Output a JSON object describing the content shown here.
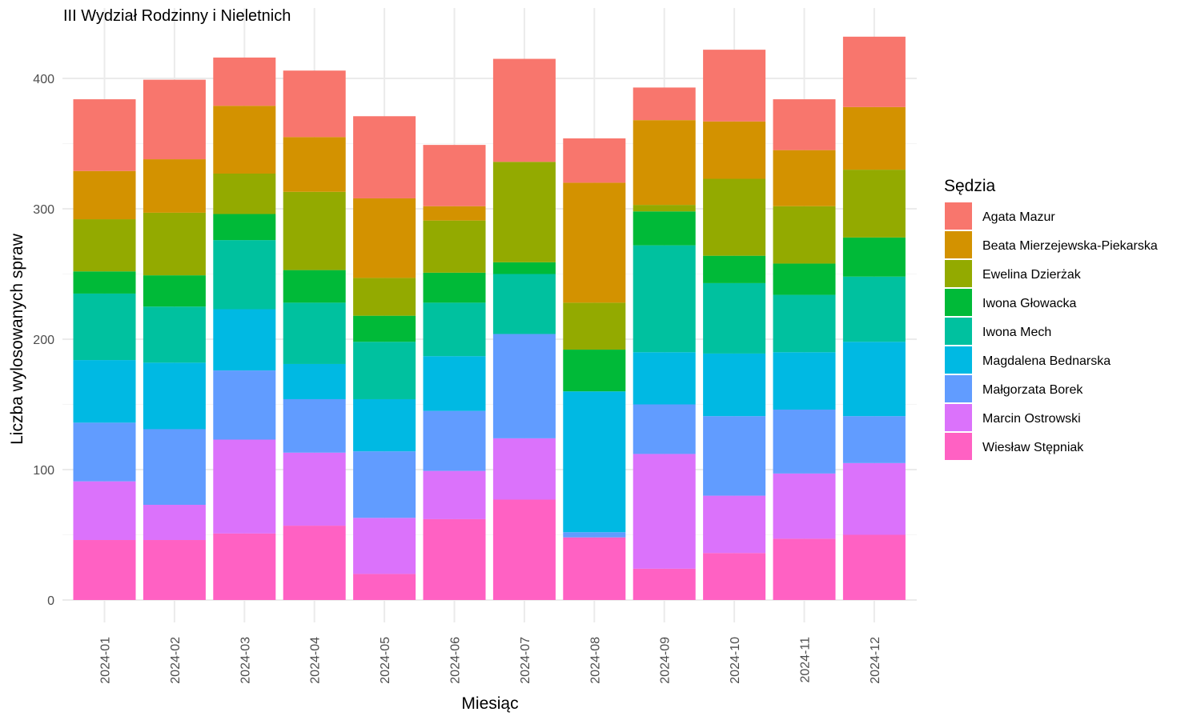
{
  "chart_data": {
    "type": "bar",
    "stacked": true,
    "title": "III Wydział Rodzinny i Nieletnich",
    "xlabel": "Miesiąc",
    "ylabel": "Liczba wylosowanych spraw",
    "ylim": [
      0,
      440
    ],
    "yticks": [
      0,
      100,
      200,
      300,
      400
    ],
    "grid": true,
    "legend_title": "Sędzia",
    "legend_position": "right",
    "categories": [
      "2024-01",
      "2024-02",
      "2024-03",
      "2024-04",
      "2024-05",
      "2024-06",
      "2024-07",
      "2024-08",
      "2024-09",
      "2024-10",
      "2024-11",
      "2024-12"
    ],
    "series": [
      {
        "name": "Wiesław Stępniak",
        "color": "#FF61C3",
        "values": [
          46,
          46,
          51,
          57,
          20,
          62,
          77,
          48,
          24,
          36,
          47,
          50
        ]
      },
      {
        "name": "Marcin Ostrowski",
        "color": "#DB72FB",
        "values": [
          45,
          27,
          72,
          56,
          43,
          37,
          47,
          0,
          88,
          44,
          50,
          55
        ]
      },
      {
        "name": "Małgorzata Borek",
        "color": "#619CFF",
        "values": [
          45,
          58,
          53,
          41,
          51,
          46,
          80,
          4,
          38,
          61,
          49,
          36
        ]
      },
      {
        "name": "Magdalena Bednarska",
        "color": "#00B9E3",
        "values": [
          48,
          51,
          47,
          27,
          40,
          42,
          0,
          108,
          40,
          48,
          44,
          57
        ]
      },
      {
        "name": "Iwona Mech",
        "color": "#00C19F",
        "values": [
          51,
          43,
          53,
          47,
          44,
          41,
          46,
          0,
          82,
          54,
          44,
          50
        ]
      },
      {
        "name": "Iwona Głowacka",
        "color": "#00BA38",
        "values": [
          17,
          24,
          20,
          25,
          20,
          23,
          9,
          32,
          26,
          21,
          24,
          30
        ]
      },
      {
        "name": "Ewelina Dzierżak",
        "color": "#93AA00",
        "values": [
          40,
          48,
          31,
          60,
          29,
          40,
          77,
          36,
          5,
          59,
          44,
          52
        ]
      },
      {
        "name": "Beata Mierzejewska-Piekarska",
        "color": "#D39200",
        "values": [
          37,
          41,
          52,
          42,
          61,
          11,
          0,
          92,
          65,
          44,
          43,
          48
        ]
      },
      {
        "name": "Agata Mazur",
        "color": "#F8766D",
        "values": [
          55,
          61,
          37,
          51,
          63,
          47,
          79,
          34,
          25,
          55,
          39,
          54
        ]
      }
    ]
  }
}
